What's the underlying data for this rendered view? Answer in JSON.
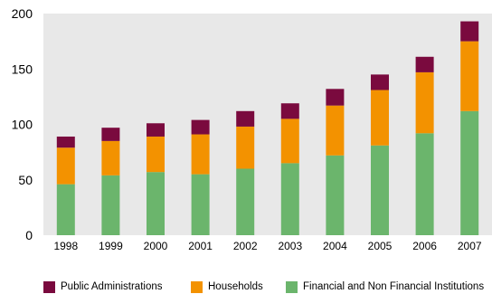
{
  "chart_data": {
    "type": "bar",
    "stacked": true,
    "categories": [
      "1998",
      "1999",
      "2000",
      "2001",
      "2002",
      "2003",
      "2004",
      "2005",
      "2006",
      "2007"
    ],
    "series": [
      {
        "name": "Financial and Non Financial Institutions",
        "color": "#6bb56c",
        "values": [
          46,
          54,
          57,
          55,
          60,
          65,
          72,
          81,
          92,
          112
        ]
      },
      {
        "name": "Households",
        "color": "#f39200",
        "values": [
          33,
          31,
          32,
          36,
          38,
          40,
          45,
          50,
          55,
          63
        ]
      },
      {
        "name": "Public Administrations",
        "color": "#7a0a3e",
        "values": [
          10,
          12,
          12,
          13,
          14,
          14,
          15,
          14,
          14,
          18
        ]
      }
    ],
    "ylim": [
      0,
      200
    ],
    "yticks": [
      0,
      50,
      100,
      150,
      200
    ],
    "grid": false,
    "legend_position": "bottom",
    "plot_background": "#e8e8e8",
    "title": "",
    "xlabel": "",
    "ylabel": ""
  },
  "legend": [
    {
      "label": "Public Administrations",
      "color": "#7a0a3e"
    },
    {
      "label": "Households",
      "color": "#f39200"
    },
    {
      "label": "Financial and Non Financial Institutions",
      "color": "#6bb56c"
    }
  ]
}
